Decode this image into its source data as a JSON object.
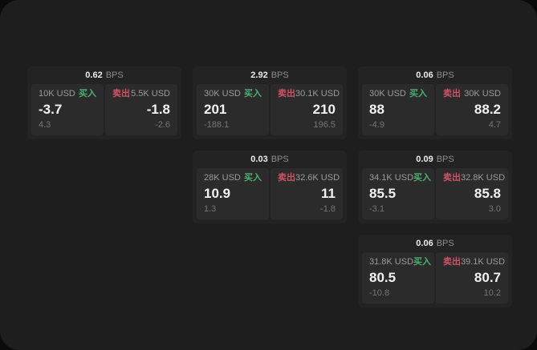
{
  "labels": {
    "buy": "买入",
    "sell": "卖出",
    "bps_unit": "BPS"
  },
  "colors": {
    "page_bg": "#0b0b0b",
    "panel_bg": "#1e1e1e",
    "card_bg": "#232323",
    "cell_bg": "#2b2b2b",
    "buy": "#4caf72",
    "sell": "#cf5264",
    "big_text": "#f2f2f2",
    "amount_text": "#9b9b9b",
    "small_text": "#757575",
    "unit_text": "#8d8d8d"
  },
  "cards": [
    {
      "bps": "0.62",
      "col": 1,
      "row": 1,
      "buy": {
        "amount": "10K USD",
        "price": "-3.7",
        "delta": "4.3"
      },
      "sell": {
        "amount": "5.5K USD",
        "price": "-1.8",
        "delta": "-2.6"
      }
    },
    {
      "bps": "2.92",
      "col": 2,
      "row": 1,
      "buy": {
        "amount": "30K USD",
        "price": "201",
        "delta": "-188.1"
      },
      "sell": {
        "amount": "30.1K USD",
        "price": "210",
        "delta": "196.5"
      }
    },
    {
      "bps": "0.06",
      "col": 3,
      "row": 1,
      "buy": {
        "amount": "30K USD",
        "price": "88",
        "delta": "-4.9"
      },
      "sell": {
        "amount": "30K USD",
        "price": "88.2",
        "delta": "4.7"
      }
    },
    {
      "bps": "0.03",
      "col": 2,
      "row": 2,
      "buy": {
        "amount": "28K USD",
        "price": "10.9",
        "delta": "1.3"
      },
      "sell": {
        "amount": "32.6K USD",
        "price": "11",
        "delta": "-1.8"
      }
    },
    {
      "bps": "0.09",
      "col": 3,
      "row": 2,
      "buy": {
        "amount": "34.1K USD",
        "price": "85.5",
        "delta": "-3.1"
      },
      "sell": {
        "amount": "32.8K USD",
        "price": "85.8",
        "delta": "3.0"
      }
    },
    {
      "bps": "0.06",
      "col": 3,
      "row": 3,
      "buy": {
        "amount": "31.8K USD",
        "price": "80.5",
        "delta": "-10.8"
      },
      "sell": {
        "amount": "39.1K USD",
        "price": "80.7",
        "delta": "10.2"
      }
    }
  ]
}
